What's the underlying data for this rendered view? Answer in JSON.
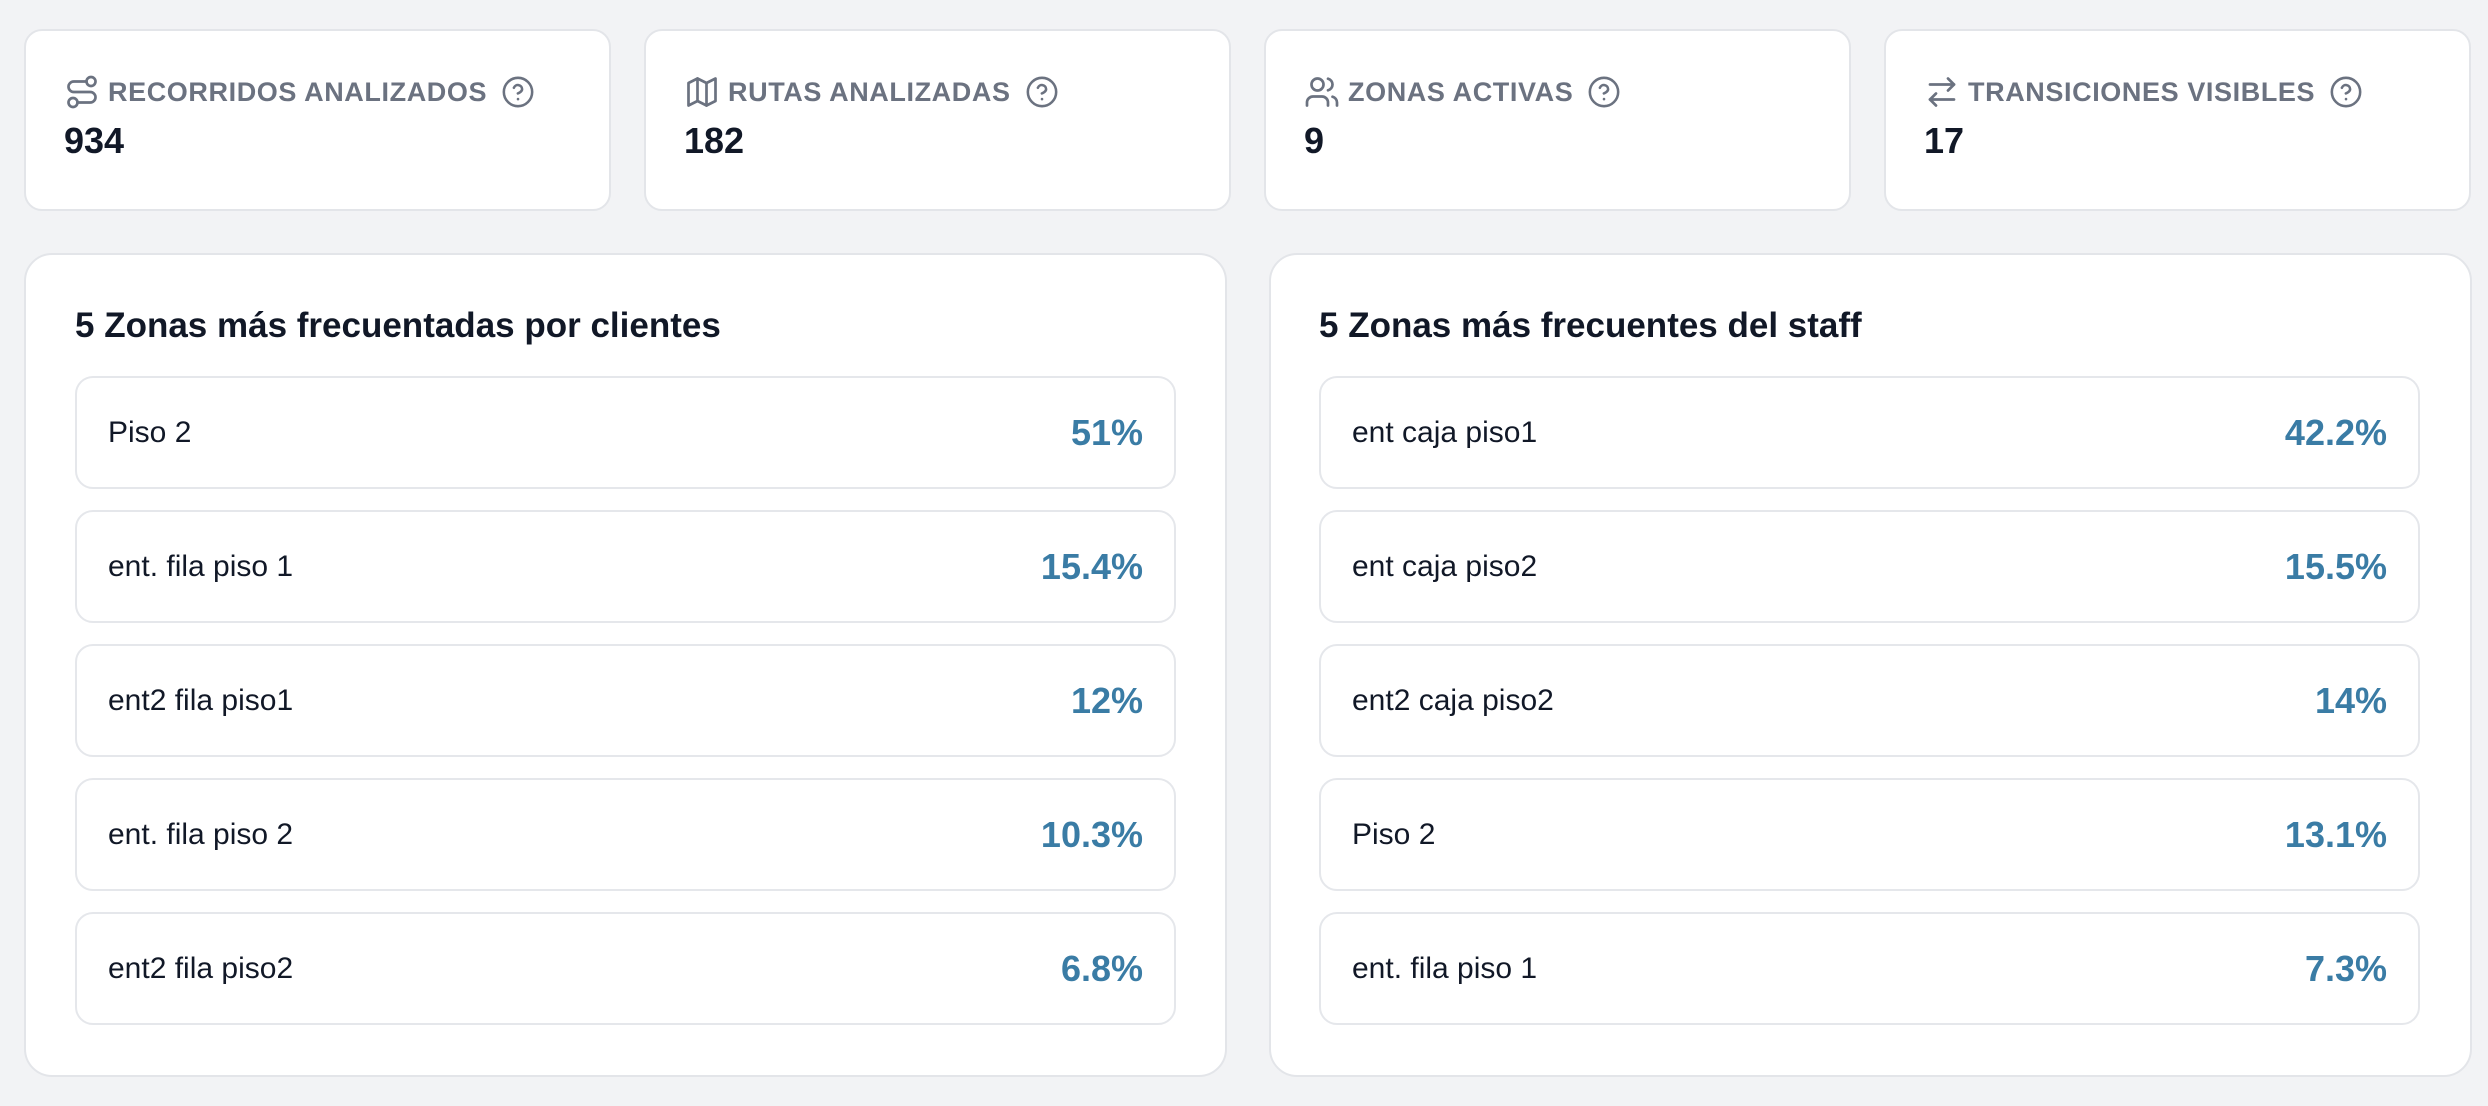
{
  "accent_color": "#3a7ca5",
  "kpis": [
    {
      "icon": "route-icon",
      "label": "RECORRIDOS ANALIZADOS",
      "value": "934"
    },
    {
      "icon": "map-icon",
      "label": "RUTAS ANALIZADAS",
      "value": "182"
    },
    {
      "icon": "users-icon",
      "label": "ZONAS ACTIVAS",
      "value": "9"
    },
    {
      "icon": "transfer-arrows-icon",
      "label": "TRANSICIONES VISIBLES",
      "value": "17"
    }
  ],
  "clientes": {
    "title": "5 Zonas más frecuentadas por clientes",
    "rows": [
      {
        "label": "Piso 2",
        "value": "51%"
      },
      {
        "label": "ent. fila piso 1",
        "value": "15.4%"
      },
      {
        "label": "ent2 fila piso1",
        "value": "12%"
      },
      {
        "label": "ent. fila piso 2",
        "value": "10.3%"
      },
      {
        "label": "ent2 fila piso2",
        "value": "6.8%"
      }
    ]
  },
  "staff": {
    "title": "5 Zonas más frecuentes del staff",
    "rows": [
      {
        "label": "ent caja piso1",
        "value": "42.2%"
      },
      {
        "label": "ent caja piso2",
        "value": "15.5%"
      },
      {
        "label": "ent2 caja piso2",
        "value": "14%"
      },
      {
        "label": "Piso 2",
        "value": "13.1%"
      },
      {
        "label": "ent. fila piso 1",
        "value": "7.3%"
      }
    ]
  }
}
